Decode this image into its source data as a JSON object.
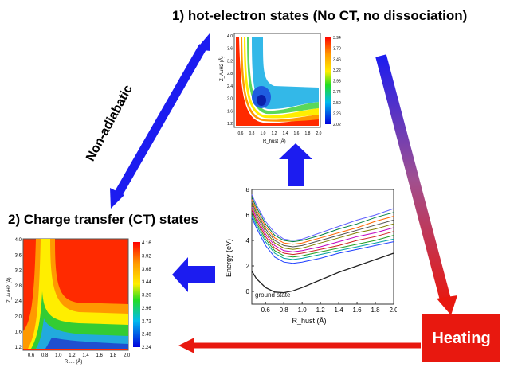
{
  "headings": {
    "hot_electron": "1) hot-electron states (No CT, no dissociation)",
    "charge_transfer": "2) Charge transfer (CT) states"
  },
  "labels": {
    "non_adiabatic": "Non-adiabatic",
    "heating": "Heating",
    "ground_state": "ground state"
  },
  "colors": {
    "arrow_blue": "#1c1cf0",
    "heating_red": "#e8180f"
  },
  "contour_hot": {
    "x_ticks": [
      "0.6",
      "0.8",
      "1.0",
      "1.2",
      "1.4",
      "1.6",
      "1.8",
      "2.0"
    ],
    "y_ticks": [
      "4.0",
      "3.6",
      "3.2",
      "2.8",
      "2.4",
      "2.0",
      "1.6",
      "1.2"
    ],
    "x_label": "R_hust (Å)",
    "y_label": "Z_AuH2 (Å)",
    "colorbar": [
      "3.94",
      "3.70",
      "3.46",
      "3.22",
      "2.98",
      "2.74",
      "2.50",
      "2.26",
      "2.02"
    ]
  },
  "contour_ct": {
    "x_ticks": [
      "0.6",
      "0.8",
      "1.0",
      "1.2",
      "1.4",
      "1.6",
      "1.8",
      "2.0"
    ],
    "y_ticks": [
      "4.0",
      "3.6",
      "3.2",
      "2.8",
      "2.4",
      "2.0",
      "1.6",
      "1.2"
    ],
    "x_label": "R..... (Å)",
    "y_label": "Z_AuH2 (Å)",
    "colorbar": [
      "4.16",
      "3.92",
      "3.68",
      "3.44",
      "3.20",
      "2.96",
      "2.72",
      "2.48",
      "2.24"
    ]
  },
  "chart_data": {
    "type": "line",
    "title": "",
    "xlabel": "R_hust (Å)",
    "ylabel": "Energy (eV)",
    "x_ticks": [
      "0.6",
      "0.8",
      "1.0",
      "1.2",
      "1.4",
      "1.6",
      "1.8",
      "2.0"
    ],
    "y_ticks": [
      "0",
      "2",
      "4",
      "6",
      "8"
    ],
    "xlim": [
      0.45,
      2.0
    ],
    "ylim": [
      -1,
      8
    ],
    "x": [
      0.45,
      0.5,
      0.6,
      0.7,
      0.8,
      0.9,
      1.0,
      1.2,
      1.4,
      1.6,
      1.8,
      2.0
    ],
    "series": [
      {
        "name": "ground state",
        "values": [
          1.6,
          1.0,
          0.3,
          -0.05,
          -0.1,
          0.05,
          0.3,
          0.9,
          1.5,
          2.0,
          2.5,
          3.0
        ]
      },
      {
        "values": [
          5.8,
          5.0,
          3.6,
          2.7,
          2.3,
          2.2,
          2.3,
          2.6,
          3.0,
          3.3,
          3.6,
          3.9
        ]
      },
      {
        "values": [
          6.0,
          5.2,
          3.9,
          3.0,
          2.6,
          2.5,
          2.6,
          2.9,
          3.2,
          3.5,
          3.8,
          4.1
        ]
      },
      {
        "values": [
          6.2,
          5.4,
          4.1,
          3.2,
          2.8,
          2.7,
          2.8,
          3.1,
          3.4,
          3.7,
          4.0,
          4.4
        ]
      },
      {
        "values": [
          6.4,
          5.6,
          4.3,
          3.4,
          3.0,
          2.9,
          3.0,
          3.3,
          3.6,
          4.0,
          4.3,
          4.7
        ]
      },
      {
        "values": [
          6.6,
          5.8,
          4.5,
          3.6,
          3.2,
          3.1,
          3.2,
          3.5,
          3.9,
          4.3,
          4.6,
          5.0
        ]
      },
      {
        "values": [
          6.8,
          6.0,
          4.7,
          3.8,
          3.4,
          3.3,
          3.4,
          3.8,
          4.2,
          4.6,
          4.9,
          5.3
        ]
      },
      {
        "values": [
          7.0,
          6.2,
          4.9,
          4.0,
          3.6,
          3.5,
          3.6,
          4.0,
          4.4,
          4.8,
          5.2,
          5.6
        ]
      },
      {
        "values": [
          7.2,
          6.4,
          5.1,
          4.2,
          3.8,
          3.7,
          3.8,
          4.2,
          4.6,
          5.0,
          5.5,
          5.9
        ]
      },
      {
        "values": [
          7.4,
          6.6,
          5.3,
          4.4,
          4.0,
          3.9,
          4.0,
          4.4,
          4.9,
          5.3,
          5.8,
          6.2
        ]
      },
      {
        "values": [
          7.6,
          6.8,
          5.5,
          4.6,
          4.1,
          4.0,
          4.1,
          4.6,
          5.1,
          5.6,
          6.0,
          6.5
        ]
      }
    ]
  }
}
